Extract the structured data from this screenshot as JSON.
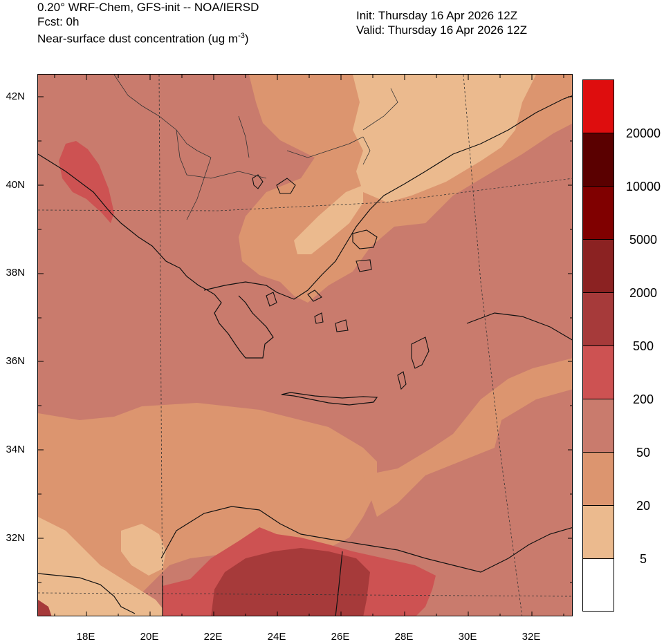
{
  "header": {
    "line1": "0.20° WRF-Chem, GFS-init -- NOA/IERSD",
    "line2": "Fcst: 0h",
    "line3_main": "Near-surface dust concentration (ug m",
    "line3_sup": "-3",
    "line3_end": ")",
    "init": "Init: Thursday 16 Apr 2026  12Z",
    "valid": "Valid: Thursday 16 Apr 2026  12Z"
  },
  "axes": {
    "lat_labels": [
      "42N",
      "40N",
      "38N",
      "36N",
      "34N",
      "32N"
    ],
    "lon_labels": [
      "18E",
      "20E",
      "22E",
      "24E",
      "26E",
      "28E",
      "30E",
      "32E"
    ]
  },
  "colorbar": {
    "colors": [
      "#de0d0e",
      "#5a0000",
      "#800000",
      "#8b2222",
      "#a63a3a",
      "#cd5252",
      "#c97b6d",
      "#dc956f",
      "#ebba8e",
      "#ffffff"
    ],
    "labels": [
      "20000",
      "10000",
      "5000",
      "2000",
      "500",
      "200",
      "50",
      "20",
      "5"
    ]
  },
  "map": {
    "level_colors": {
      "white": "#ffffff",
      "c5": "#ebba8e",
      "c20": "#dc956f",
      "c50": "#c97b6d",
      "c200": "#cd5252",
      "c500": "#a63a3a",
      "water": "#a9d6e9"
    }
  }
}
